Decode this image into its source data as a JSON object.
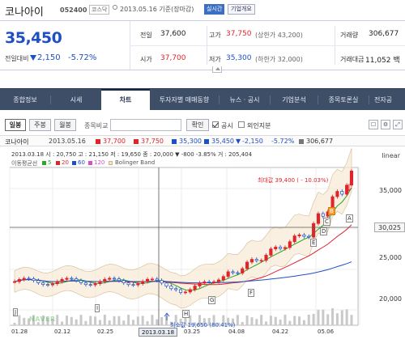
{
  "header": {
    "name": "코나아이",
    "code": "052400",
    "market": "코스닥",
    "date": "2013.05.16 기준(장마감)",
    "live_button": "실시간",
    "overview_button": "기업개요"
  },
  "quote": {
    "price": "35,450",
    "change_label": "전일대비",
    "change": "2,150",
    "change_pct": "-5.72%",
    "prev_close_label": "전일",
    "prev_close": "37,600",
    "high_label": "고가",
    "high": "37,750",
    "upper_limit": "(상한가 43,200)",
    "volume_label": "거래량",
    "volume": "306,677",
    "open_label": "시가",
    "open": "37,700",
    "low_label": "저가",
    "low": "35,300",
    "lower_limit": "(하한가 32,000)",
    "amount_label": "거래대금",
    "amount": "11,052 백"
  },
  "tabs": [
    "종합정보",
    "시세",
    "차트",
    "투자자별 매매동향",
    "뉴스 · 공시",
    "기업분석",
    "종목토론실",
    "전자공"
  ],
  "active_tab": 2,
  "controls": {
    "period_buttons": [
      "일봉",
      "주봉",
      "월봉"
    ],
    "compare_label": "종목비교",
    "confirm_button": "확인",
    "disclosure_label": "공시",
    "foreign_label": "외인지분"
  },
  "info_bar": {
    "name": "코나아이",
    "date": "2013.05.16",
    "open": "37,700",
    "high": "37,750",
    "low": "35,300",
    "close": "35,450",
    "change": "-2,150",
    "pct": "-5.72%",
    "volume": "306,677"
  },
  "chart_info": "2013.03.18  시 : 20,750  고 : 21,150  저 : 19,650  종 : 20,000  ▼  -800  -3.85%  거 : 205,404",
  "legend": {
    "title": "이동평균선",
    "items": [
      {
        "label": "5",
        "color": "#2aa82a"
      },
      {
        "label": "20",
        "color": "#e0242a"
      },
      {
        "label": "60",
        "color": "#1e4fc4"
      },
      {
        "label": "120",
        "color": "#d84ec8"
      }
    ],
    "bollinger": "Bolinger Band"
  },
  "chart_data": {
    "type": "candlestick",
    "scale": "linear",
    "x_labels": [
      "01.28",
      "02.12",
      "02.25",
      "2013.03.18",
      "03.25",
      "04.08",
      "04.22",
      "05.06"
    ],
    "y_labels": [
      "35,000",
      "30,025",
      "25,000",
      "20,000"
    ],
    "current_value": "30,025",
    "max_annotation": "최대값 39,400 ( - 10.03%)",
    "min_annotation": "최소값 19,650 (80.41%)",
    "markers": [
      "A",
      "B",
      "C",
      "D",
      "E",
      "F",
      "G",
      "H",
      "I",
      "J"
    ]
  }
}
